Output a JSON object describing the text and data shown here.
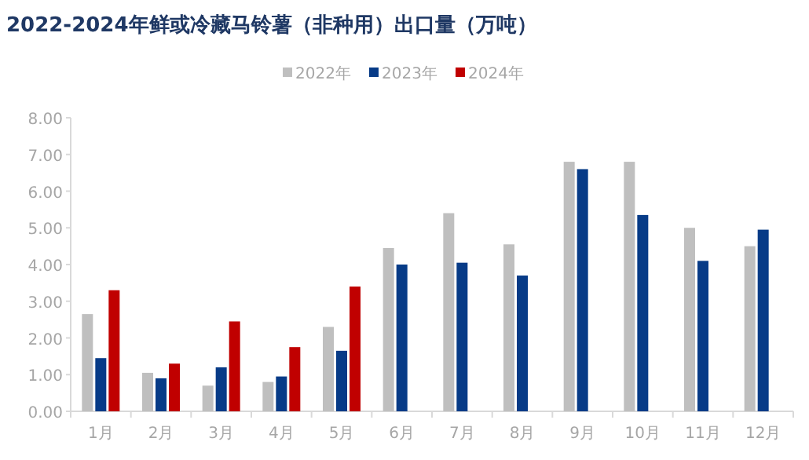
{
  "chart_data": {
    "type": "bar",
    "title": "2022-2024年鲜或冷藏马铃薯（非种用）出口量（万吨）",
    "categories": [
      "1月",
      "2月",
      "3月",
      "4月",
      "5月",
      "6月",
      "7月",
      "8月",
      "9月",
      "10月",
      "11月",
      "12月"
    ],
    "series": [
      {
        "name": "2022年",
        "color": "#bfbfbf",
        "values": [
          2.65,
          1.05,
          0.7,
          0.8,
          2.3,
          4.45,
          5.4,
          4.55,
          6.8,
          6.8,
          5.0,
          4.5
        ]
      },
      {
        "name": "2023年",
        "color": "#073b87",
        "values": [
          1.45,
          0.9,
          1.2,
          0.95,
          1.65,
          4.0,
          4.05,
          3.7,
          6.6,
          5.35,
          4.1,
          4.95
        ]
      },
      {
        "name": "2024年",
        "color": "#c00000",
        "values": [
          3.3,
          1.3,
          2.45,
          1.75,
          3.4,
          null,
          null,
          null,
          null,
          null,
          null,
          null
        ]
      }
    ],
    "ylim": [
      0,
      8
    ],
    "yticks": [
      {
        "value": 0,
        "label": "0.00"
      },
      {
        "value": 1,
        "label": "1.00"
      },
      {
        "value": 2,
        "label": "2.00"
      },
      {
        "value": 3,
        "label": "3.00"
      },
      {
        "value": 4,
        "label": "4.00"
      },
      {
        "value": 5,
        "label": "5.00"
      },
      {
        "value": 6,
        "label": "6.00"
      },
      {
        "value": 7,
        "label": "7.00"
      },
      {
        "value": 8,
        "label": "8.00"
      }
    ],
    "grid": false,
    "legend": "top"
  }
}
